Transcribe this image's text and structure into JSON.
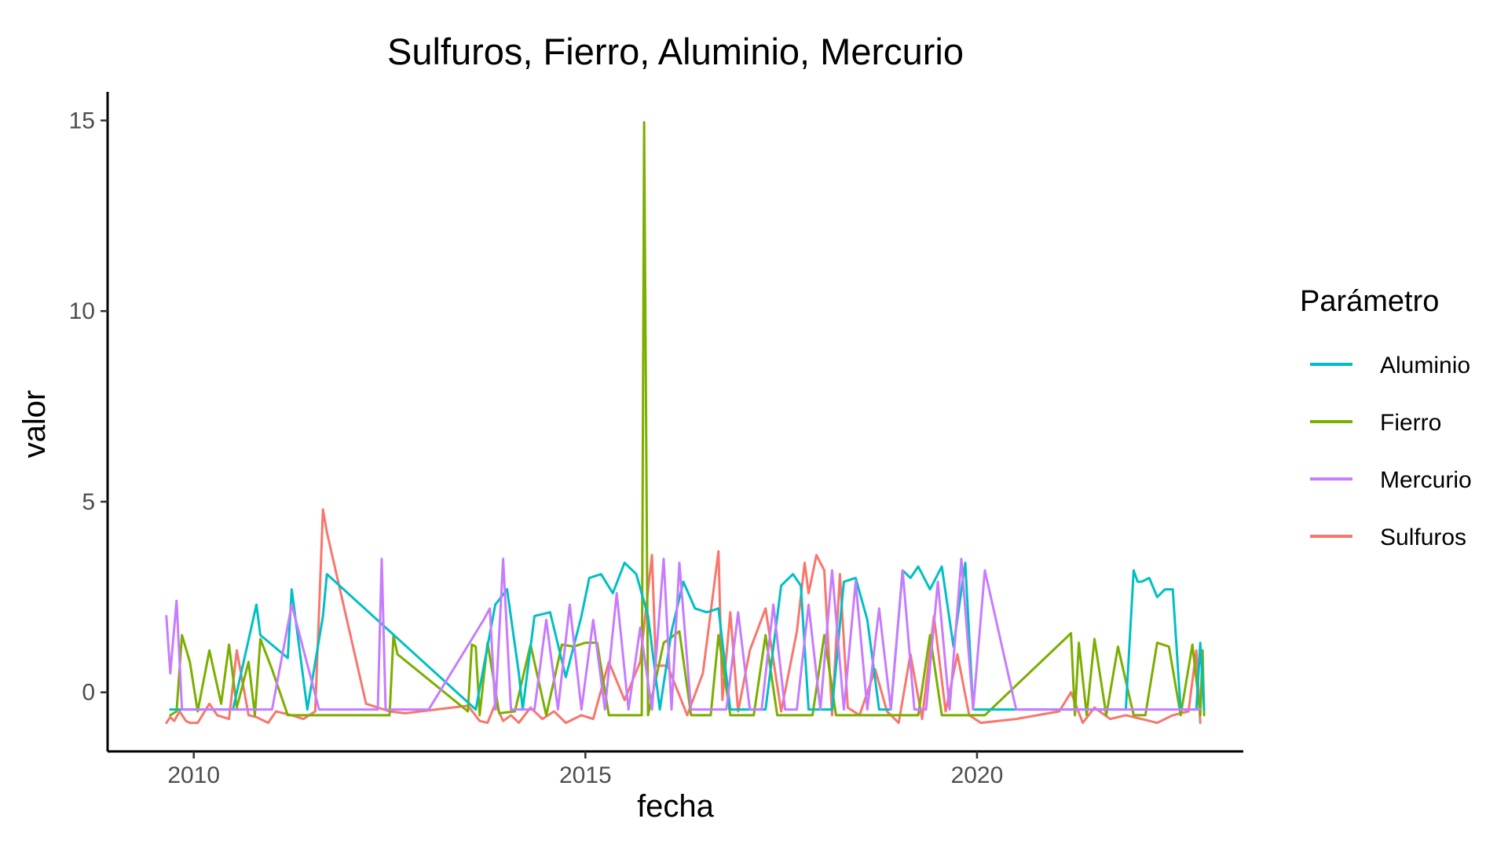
{
  "chart_data": {
    "type": "line",
    "title": "Sulfuros, Fierro, Aluminio, Mercurio",
    "xlabel": "fecha",
    "ylabel": "valor",
    "xlim": [
      2008.9,
      2023.4
    ],
    "ylim": [
      -1.55,
      15.75
    ],
    "x_ticks": [
      {
        "value": 2010,
        "label": "2010"
      },
      {
        "value": 2015,
        "label": "2015"
      },
      {
        "value": 2020,
        "label": "2020"
      }
    ],
    "y_ticks": [
      {
        "value": 0,
        "label": "0"
      },
      {
        "value": 5,
        "label": "5"
      },
      {
        "value": 10,
        "label": "10"
      },
      {
        "value": 15,
        "label": "15"
      }
    ],
    "legend": {
      "title": "Parámetro",
      "position": "right",
      "entries": [
        "Aluminio",
        "Fierro",
        "Mercurio",
        "Sulfuros"
      ]
    },
    "grid": false,
    "series": [
      {
        "name": "Sulfuros",
        "color": "#F8766D",
        "x": [
          2009.65,
          2009.7,
          2009.75,
          2009.82,
          2009.9,
          2009.95,
          2010.05,
          2010.2,
          2010.3,
          2010.45,
          2010.55,
          2010.7,
          2010.8,
          2010.95,
          2011.05,
          2011.25,
          2011.4,
          2011.55,
          2011.65,
          2011.7,
          2012.2,
          2012.5,
          2012.7,
          2013.5,
          2013.65,
          2013.75,
          2013.85,
          2013.95,
          2014.05,
          2014.15,
          2014.3,
          2014.45,
          2014.6,
          2014.75,
          2014.95,
          2015.1,
          2015.3,
          2015.5,
          2015.7,
          2015.85,
          2015.9,
          2016.05,
          2016.3,
          2016.5,
          2016.7,
          2016.75,
          2016.85,
          2016.95,
          2017.1,
          2017.3,
          2017.5,
          2017.7,
          2017.8,
          2017.85,
          2017.95,
          2018.05,
          2018.15,
          2018.25,
          2018.35,
          2018.5,
          2018.7,
          2018.85,
          2019.0,
          2019.15,
          2019.3,
          2019.45,
          2019.6,
          2019.75,
          2019.9,
          2020.05,
          2020.5,
          2021.05,
          2021.2,
          2021.35,
          2021.5,
          2021.7,
          2021.9,
          2022.1,
          2022.3,
          2022.5,
          2022.7,
          2022.8,
          2022.85
        ],
        "y": [
          -0.8,
          -0.65,
          -0.75,
          -0.5,
          -0.75,
          -0.8,
          -0.8,
          -0.3,
          -0.6,
          -0.7,
          1.1,
          -0.6,
          -0.65,
          -0.8,
          -0.5,
          -0.6,
          -0.7,
          -0.5,
          4.8,
          4.2,
          -0.3,
          -0.5,
          -0.55,
          -0.35,
          -0.75,
          -0.8,
          -0.3,
          -0.75,
          -0.6,
          -0.8,
          -0.4,
          -0.7,
          -0.5,
          -0.8,
          -0.6,
          -0.7,
          0.8,
          -0.2,
          0.8,
          3.6,
          0.7,
          0.7,
          -0.6,
          0.5,
          3.7,
          -0.2,
          2.1,
          -0.5,
          1.1,
          2.2,
          -0.5,
          1.6,
          3.4,
          2.6,
          3.6,
          3.2,
          -0.6,
          3.1,
          -0.4,
          -0.6,
          0.6,
          -0.5,
          -0.8,
          1.0,
          -0.7,
          2.0,
          -0.5,
          1.0,
          -0.6,
          -0.8,
          -0.7,
          -0.5,
          0.0,
          -0.8,
          -0.4,
          -0.7,
          -0.6,
          -0.7,
          -0.8,
          -0.6,
          -0.5,
          1.1,
          -0.8
        ]
      },
      {
        "name": "Fierro",
        "color": "#7CAE00",
        "x": [
          2009.7,
          2009.78,
          2009.85,
          2009.95,
          2010.05,
          2010.2,
          2010.35,
          2010.45,
          2010.55,
          2010.7,
          2010.78,
          2010.85,
          2011.0,
          2011.2,
          2011.5,
          2011.7,
          2012.5,
          2012.55,
          2012.6,
          2013.5,
          2013.55,
          2013.6,
          2013.65,
          2013.75,
          2013.9,
          2014.1,
          2014.3,
          2014.5,
          2014.7,
          2014.85,
          2015.0,
          2015.15,
          2015.3,
          2015.45,
          2015.6,
          2015.72,
          2015.75,
          2015.8,
          2016.0,
          2016.2,
          2016.35,
          2016.5,
          2016.6,
          2016.7,
          2016.85,
          2017.0,
          2017.15,
          2017.3,
          2017.45,
          2017.6,
          2017.75,
          2017.9,
          2018.05,
          2018.2,
          2018.35,
          2018.5,
          2018.65,
          2018.8,
          2018.95,
          2019.1,
          2019.25,
          2019.4,
          2019.55,
          2019.7,
          2019.85,
          2020.0,
          2020.1,
          2021.2,
          2021.25,
          2021.3,
          2021.4,
          2021.5,
          2021.65,
          2021.8,
          2022.0,
          2022.15,
          2022.3,
          2022.45,
          2022.6,
          2022.75,
          2022.85,
          2022.88,
          2022.9
        ],
        "y": [
          -0.6,
          -0.5,
          1.5,
          0.8,
          -0.5,
          1.1,
          -0.3,
          1.25,
          -0.4,
          0.8,
          -0.6,
          1.4,
          0.6,
          -0.6,
          -0.6,
          -0.6,
          -0.6,
          1.5,
          1.0,
          -0.5,
          1.25,
          1.2,
          -0.6,
          1.3,
          -0.55,
          -0.5,
          1.25,
          -0.6,
          1.25,
          1.2,
          1.3,
          1.3,
          -0.6,
          -0.6,
          -0.6,
          -0.6,
          14.95,
          -0.6,
          1.3,
          1.6,
          -0.6,
          -0.6,
          -0.6,
          1.5,
          -0.6,
          -0.6,
          -0.6,
          1.5,
          -0.6,
          -0.6,
          -0.6,
          -0.6,
          1.5,
          -0.6,
          -0.6,
          -0.6,
          -0.6,
          -0.6,
          -0.6,
          -0.6,
          -0.6,
          1.5,
          -0.6,
          -0.6,
          -0.6,
          -0.6,
          -0.6,
          1.55,
          -0.6,
          1.3,
          -0.6,
          1.4,
          -0.6,
          1.2,
          -0.6,
          -0.6,
          1.3,
          1.2,
          -0.6,
          1.25,
          -0.6,
          1.1,
          -0.6
        ]
      },
      {
        "name": "Aluminio",
        "color": "#00BFC4",
        "x": [
          2009.7,
          2009.8,
          2010.0,
          2010.5,
          2010.8,
          2010.85,
          2011.2,
          2011.25,
          2011.45,
          2011.65,
          2011.7,
          2013.6,
          2013.85,
          2014.0,
          2014.15,
          2014.2,
          2014.35,
          2014.55,
          2014.75,
          2014.95,
          2015.05,
          2015.2,
          2015.35,
          2015.5,
          2015.65,
          2015.8,
          2015.95,
          2016.1,
          2016.25,
          2016.4,
          2016.55,
          2016.7,
          2016.85,
          2017.0,
          2017.15,
          2017.3,
          2017.5,
          2017.65,
          2017.75,
          2017.85,
          2018.0,
          2018.15,
          2018.3,
          2018.45,
          2018.6,
          2018.75,
          2018.9,
          2019.05,
          2019.15,
          2019.25,
          2019.4,
          2019.55,
          2019.7,
          2019.85,
          2019.95,
          2020.0,
          2021.0,
          2021.5,
          2021.9,
          2022.0,
          2022.05,
          2022.1,
          2022.2,
          2022.3,
          2022.4,
          2022.5,
          2022.6,
          2022.7,
          2022.8,
          2022.85,
          2022.9
        ],
        "y": [
          -0.45,
          -0.45,
          -0.45,
          -0.45,
          2.3,
          1.5,
          0.9,
          2.7,
          -0.45,
          2.0,
          3.1,
          -0.45,
          2.3,
          2.7,
          0.5,
          -0.45,
          2.0,
          2.1,
          0.4,
          2.0,
          3.0,
          3.1,
          2.6,
          3.4,
          3.1,
          2.0,
          -0.45,
          1.6,
          2.9,
          2.2,
          2.1,
          2.2,
          -0.45,
          -0.45,
          -0.45,
          -0.45,
          2.8,
          3.1,
          2.8,
          -0.45,
          -0.45,
          -0.45,
          2.9,
          3.0,
          1.9,
          -0.45,
          -0.45,
          3.2,
          3.0,
          3.3,
          2.7,
          3.3,
          1.2,
          3.4,
          -0.45,
          -0.45,
          -0.45,
          -0.45,
          -0.45,
          3.2,
          2.9,
          2.9,
          3.0,
          2.5,
          2.7,
          2.7,
          -0.45,
          -0.45,
          -0.45,
          1.3,
          -0.45
        ]
      },
      {
        "name": "Mercurio",
        "color": "#C77CFF",
        "x": [
          2009.65,
          2009.7,
          2009.78,
          2009.85,
          2010.0,
          2010.2,
          2010.4,
          2011.0,
          2011.25,
          2011.6,
          2012.0,
          2012.35,
          2012.4,
          2012.45,
          2013.0,
          2013.7,
          2013.78,
          2013.85,
          2013.95,
          2014.05,
          2014.2,
          2014.35,
          2014.5,
          2014.65,
          2014.8,
          2014.95,
          2015.1,
          2015.25,
          2015.4,
          2015.55,
          2015.7,
          2015.85,
          2016.0,
          2016.1,
          2016.2,
          2016.35,
          2016.5,
          2016.65,
          2016.8,
          2016.95,
          2017.1,
          2017.25,
          2017.4,
          2017.55,
          2017.7,
          2017.85,
          2018.0,
          2018.15,
          2018.3,
          2018.45,
          2018.6,
          2018.75,
          2018.9,
          2019.05,
          2019.2,
          2019.35,
          2019.5,
          2019.65,
          2019.8,
          2019.95,
          2020.1,
          2020.5,
          2021.0,
          2021.5,
          2022.0,
          2022.5,
          2022.85
        ],
        "y": [
          2.0,
          0.5,
          2.4,
          -0.45,
          -0.45,
          -0.45,
          -0.45,
          -0.45,
          2.3,
          -0.45,
          -0.45,
          -0.45,
          3.5,
          -0.45,
          -0.45,
          1.9,
          2.2,
          -0.45,
          3.5,
          -0.45,
          -0.45,
          -0.45,
          1.9,
          -0.45,
          2.3,
          -0.45,
          1.9,
          -0.45,
          2.6,
          -0.45,
          1.7,
          -0.45,
          3.5,
          -0.45,
          3.4,
          -0.45,
          -0.45,
          -0.45,
          -0.45,
          2.1,
          -0.45,
          -0.45,
          2.3,
          -0.45,
          -0.45,
          2.3,
          -0.45,
          3.2,
          -0.45,
          2.9,
          -0.45,
          2.2,
          -0.45,
          3.2,
          -0.45,
          -0.45,
          2.9,
          -0.45,
          3.5,
          -0.45,
          3.2,
          -0.45,
          -0.45,
          -0.45,
          -0.45,
          -0.45,
          -0.45
        ]
      }
    ]
  }
}
